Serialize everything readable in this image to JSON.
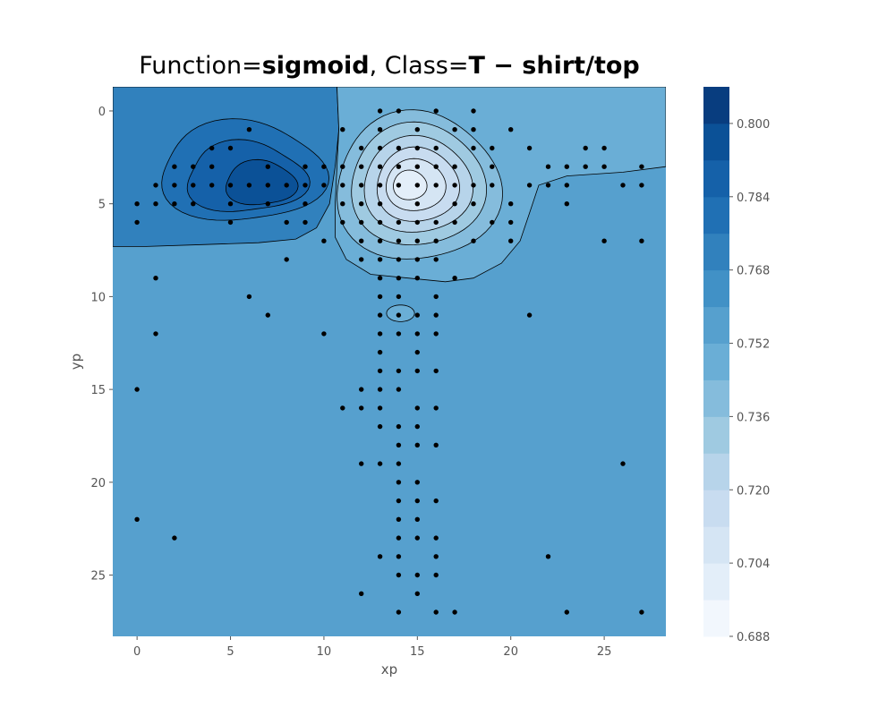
{
  "title": {
    "prefix1": "Function=",
    "func": "sigmoid",
    "prefix2": ", Class=",
    "cls": "T − shirt/top"
  },
  "chart_data": {
    "type": "contourf",
    "xlabel": "xp",
    "ylabel": "yp",
    "xlim": [
      -1.3,
      28.3
    ],
    "ylim": [
      28.3,
      -1.3
    ],
    "y_inverted": true,
    "grid": false,
    "xticks": [
      0,
      5,
      10,
      15,
      20,
      25
    ],
    "yticks": [
      0,
      5,
      10,
      15,
      20,
      25
    ],
    "background_level": 0.752,
    "colorbar": {
      "levels": [
        0.688,
        0.696,
        0.704,
        0.712,
        0.72,
        0.728,
        0.736,
        0.744,
        0.752,
        0.76,
        0.768,
        0.776,
        0.784,
        0.792,
        0.8,
        0.808
      ],
      "tick_labels": [
        "0.688",
        "0.704",
        "0.720",
        "0.736",
        "0.752",
        "0.768",
        "0.784",
        "0.800"
      ],
      "colors": [
        "#f2f7fd",
        "#e3eef9",
        "#d5e5f4",
        "#c8dcf0",
        "#b7d4ea",
        "#9fcae1",
        "#85bcdc",
        "#6aaed6",
        "#56a0ce",
        "#4191c6",
        "#3181bd",
        "#2070b4",
        "#1561a9",
        "#0b5197",
        "#083d7f"
      ]
    },
    "contour_regions": [
      {
        "name": "low-region",
        "level": 0.736,
        "center": [
          15.0,
          4.0
        ]
      },
      {
        "name": "high-region",
        "level": 0.776,
        "center": [
          5.5,
          3.0
        ]
      }
    ],
    "points": [
      [
        13,
        0
      ],
      [
        14,
        0
      ],
      [
        16,
        0
      ],
      [
        18,
        0
      ],
      [
        6,
        1
      ],
      [
        11,
        1
      ],
      [
        13,
        1
      ],
      [
        15,
        1
      ],
      [
        17,
        1
      ],
      [
        18,
        1
      ],
      [
        20,
        1
      ],
      [
        4,
        2
      ],
      [
        5,
        2
      ],
      [
        12,
        2
      ],
      [
        13,
        2
      ],
      [
        14,
        2
      ],
      [
        15,
        2
      ],
      [
        16,
        2
      ],
      [
        18,
        2
      ],
      [
        19,
        2
      ],
      [
        21,
        2
      ],
      [
        24,
        2
      ],
      [
        25,
        2
      ],
      [
        2,
        3
      ],
      [
        3,
        3
      ],
      [
        4,
        3
      ],
      [
        7,
        3
      ],
      [
        9,
        3
      ],
      [
        10,
        3
      ],
      [
        11,
        3
      ],
      [
        12,
        3
      ],
      [
        13,
        3
      ],
      [
        14,
        3
      ],
      [
        15,
        3
      ],
      [
        16,
        3
      ],
      [
        17,
        3
      ],
      [
        19,
        3
      ],
      [
        22,
        3
      ],
      [
        23,
        3
      ],
      [
        24,
        3
      ],
      [
        25,
        3
      ],
      [
        27,
        3
      ],
      [
        1,
        4
      ],
      [
        2,
        4
      ],
      [
        3,
        4
      ],
      [
        4,
        4
      ],
      [
        5,
        4
      ],
      [
        6,
        4
      ],
      [
        7,
        4
      ],
      [
        8,
        4
      ],
      [
        9,
        4
      ],
      [
        10,
        4
      ],
      [
        11,
        4
      ],
      [
        12,
        4
      ],
      [
        13,
        4
      ],
      [
        14,
        4
      ],
      [
        15,
        4
      ],
      [
        16,
        4
      ],
      [
        17,
        4
      ],
      [
        18,
        4
      ],
      [
        19,
        4
      ],
      [
        21,
        4
      ],
      [
        22,
        4
      ],
      [
        23,
        4
      ],
      [
        26,
        4
      ],
      [
        27,
        4
      ],
      [
        0,
        5
      ],
      [
        1,
        5
      ],
      [
        2,
        5
      ],
      [
        3,
        5
      ],
      [
        5,
        5
      ],
      [
        7,
        5
      ],
      [
        9,
        5
      ],
      [
        11,
        5
      ],
      [
        12,
        5
      ],
      [
        13,
        5
      ],
      [
        15,
        5
      ],
      [
        17,
        5
      ],
      [
        18,
        5
      ],
      [
        20,
        5
      ],
      [
        23,
        5
      ],
      [
        0,
        6
      ],
      [
        5,
        6
      ],
      [
        8,
        6
      ],
      [
        9,
        6
      ],
      [
        11,
        6
      ],
      [
        12,
        6
      ],
      [
        13,
        6
      ],
      [
        14,
        6
      ],
      [
        15,
        6
      ],
      [
        16,
        6
      ],
      [
        17,
        6
      ],
      [
        19,
        6
      ],
      [
        20,
        6
      ],
      [
        10,
        7
      ],
      [
        12,
        7
      ],
      [
        13,
        7
      ],
      [
        14,
        7
      ],
      [
        15,
        7
      ],
      [
        16,
        7
      ],
      [
        18,
        7
      ],
      [
        20,
        7
      ],
      [
        25,
        7
      ],
      [
        27,
        7
      ],
      [
        8,
        8
      ],
      [
        12,
        8
      ],
      [
        13,
        8
      ],
      [
        14,
        8
      ],
      [
        15,
        8
      ],
      [
        16,
        8
      ],
      [
        1,
        9
      ],
      [
        13,
        9
      ],
      [
        14,
        9
      ],
      [
        15,
        9
      ],
      [
        17,
        9
      ],
      [
        6,
        10
      ],
      [
        13,
        10
      ],
      [
        14,
        10
      ],
      [
        16,
        10
      ],
      [
        7,
        11
      ],
      [
        13,
        11
      ],
      [
        14,
        11
      ],
      [
        15,
        11
      ],
      [
        16,
        11
      ],
      [
        21,
        11
      ],
      [
        1,
        12
      ],
      [
        10,
        12
      ],
      [
        13,
        12
      ],
      [
        14,
        12
      ],
      [
        15,
        12
      ],
      [
        16,
        12
      ],
      [
        13,
        13
      ],
      [
        15,
        13
      ],
      [
        13,
        14
      ],
      [
        14,
        14
      ],
      [
        15,
        14
      ],
      [
        16,
        14
      ],
      [
        0,
        15
      ],
      [
        12,
        15
      ],
      [
        13,
        15
      ],
      [
        14,
        15
      ],
      [
        11,
        16
      ],
      [
        12,
        16
      ],
      [
        13,
        16
      ],
      [
        15,
        16
      ],
      [
        16,
        16
      ],
      [
        13,
        17
      ],
      [
        14,
        17
      ],
      [
        15,
        17
      ],
      [
        14,
        18
      ],
      [
        15,
        18
      ],
      [
        16,
        18
      ],
      [
        12,
        19
      ],
      [
        13,
        19
      ],
      [
        14,
        19
      ],
      [
        26,
        19
      ],
      [
        14,
        20
      ],
      [
        15,
        20
      ],
      [
        14,
        21
      ],
      [
        15,
        21
      ],
      [
        16,
        21
      ],
      [
        0,
        22
      ],
      [
        14,
        22
      ],
      [
        15,
        22
      ],
      [
        2,
        23
      ],
      [
        14,
        23
      ],
      [
        15,
        23
      ],
      [
        16,
        23
      ],
      [
        13,
        24
      ],
      [
        14,
        24
      ],
      [
        16,
        24
      ],
      [
        22,
        24
      ],
      [
        14,
        25
      ],
      [
        15,
        25
      ],
      [
        16,
        25
      ],
      [
        12,
        26
      ],
      [
        15,
        26
      ],
      [
        14,
        27
      ],
      [
        16,
        27
      ],
      [
        17,
        27
      ],
      [
        23,
        27
      ],
      [
        27,
        27
      ]
    ]
  }
}
